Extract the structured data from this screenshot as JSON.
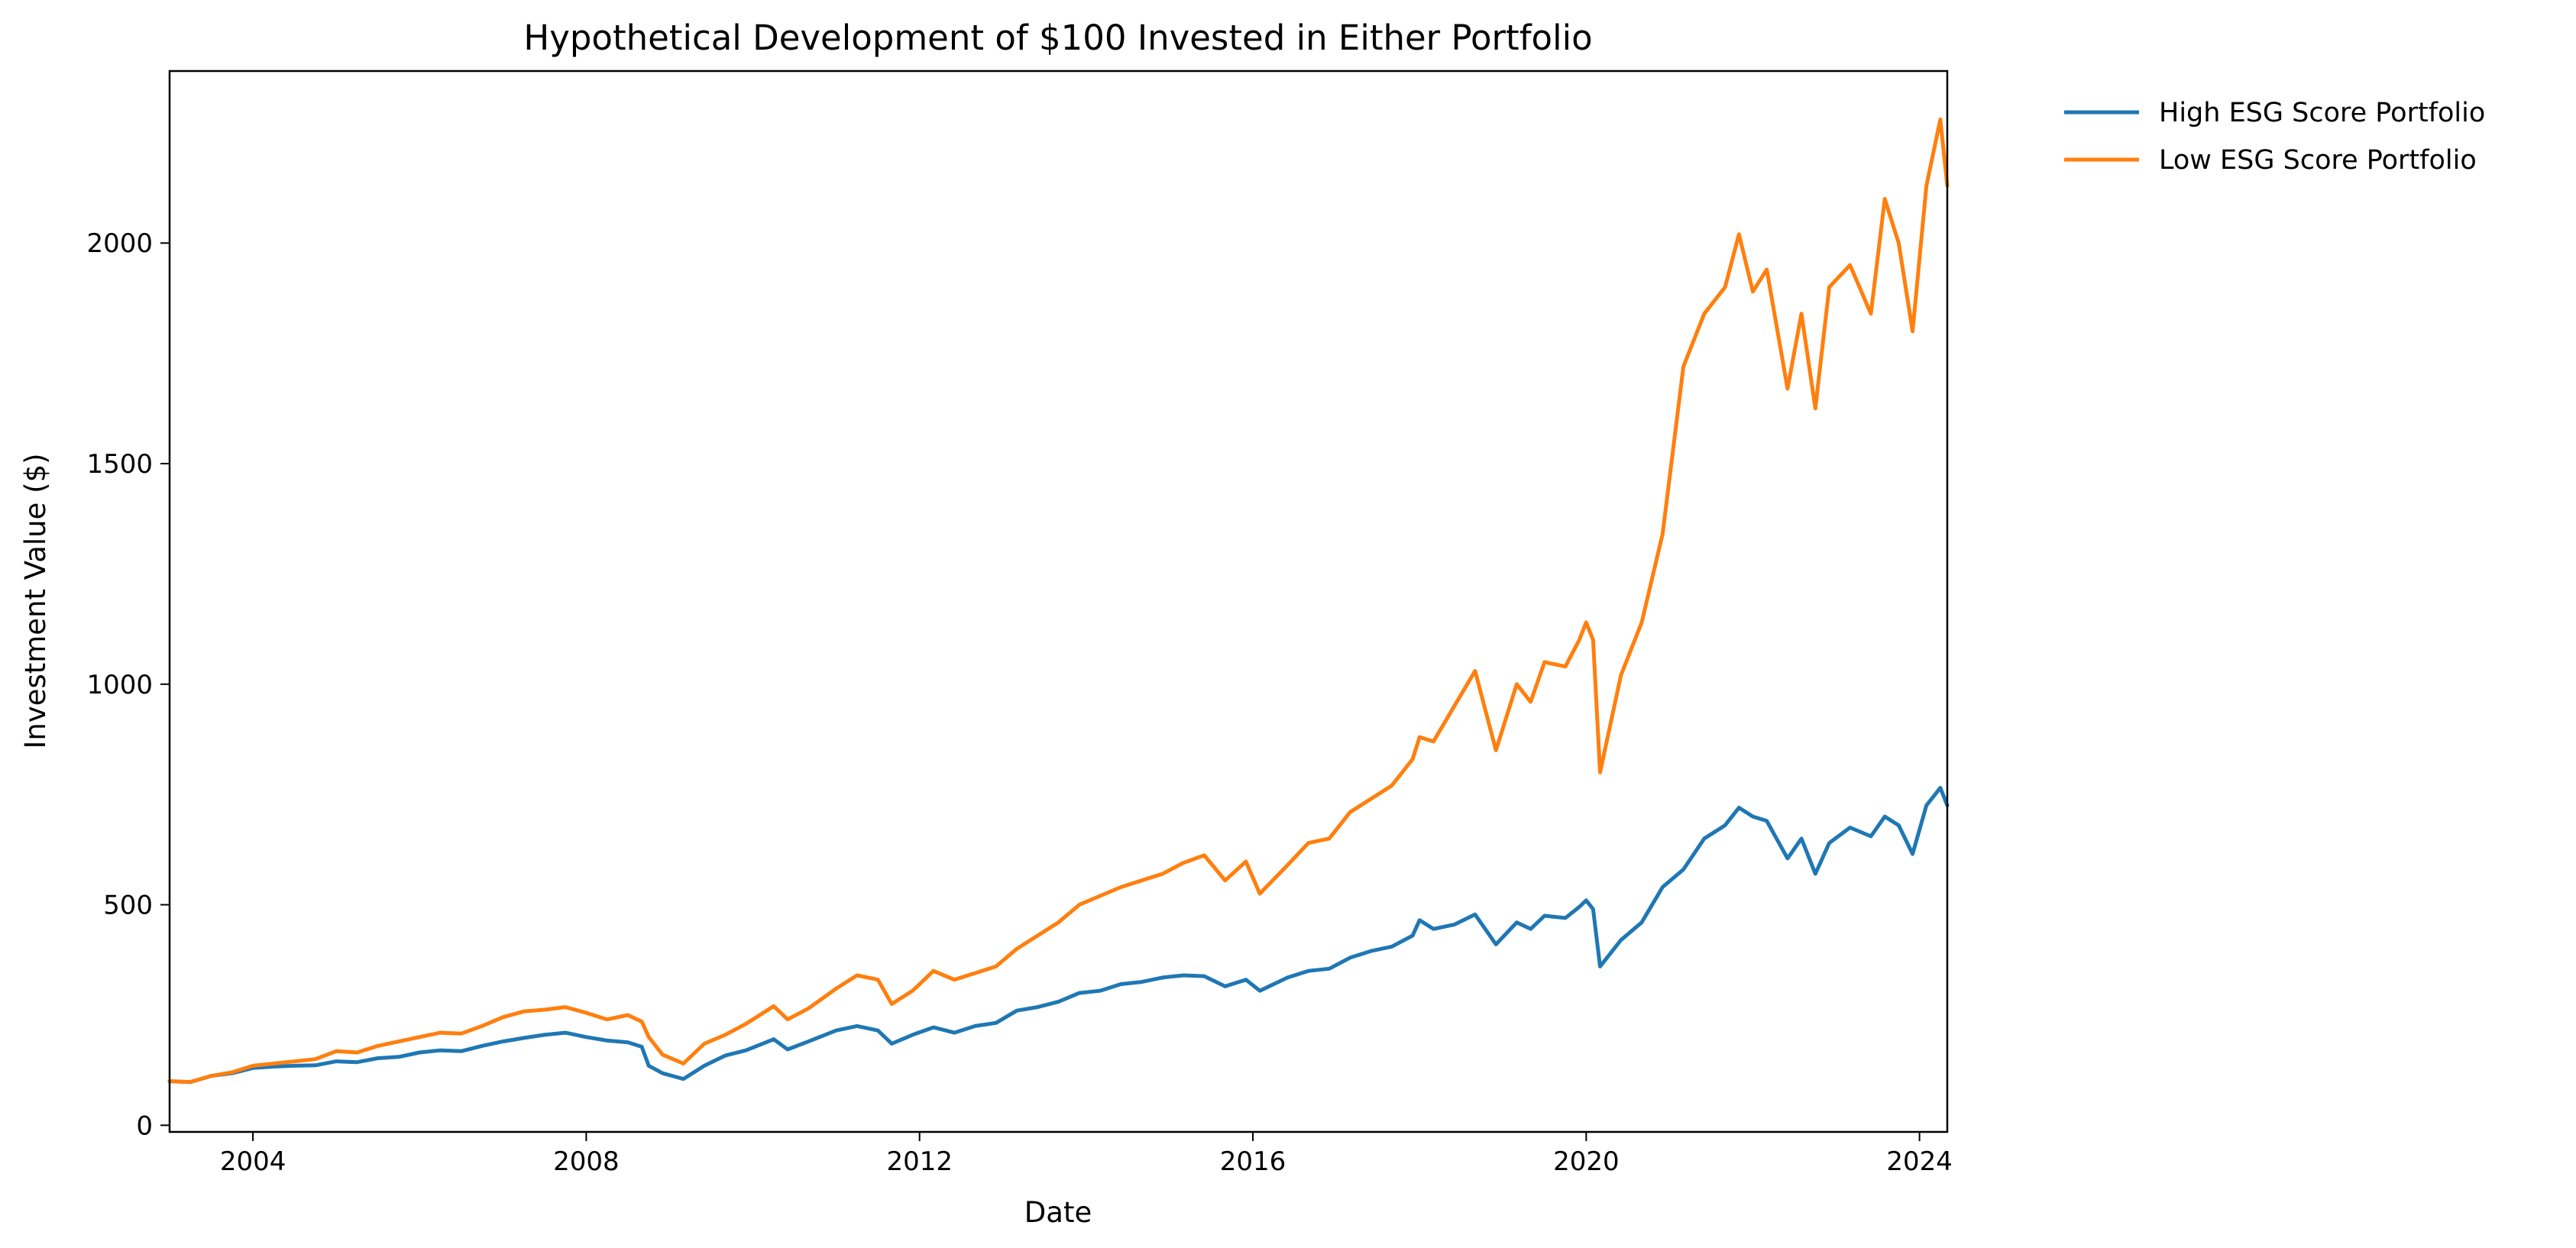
{
  "chart_data": {
    "type": "line",
    "title": "Hypothetical Development of $100 Invested in Either Portfolio",
    "xlabel": "Date",
    "ylabel": "Investment Value ($)",
    "x_type": "date",
    "xlim": [
      "2003-01",
      "2024-05"
    ],
    "ylim": [
      -15,
      2390
    ],
    "xticks": [
      "2004",
      "2008",
      "2012",
      "2016",
      "2020",
      "2024"
    ],
    "yticks": [
      0,
      500,
      1000,
      1500,
      2000
    ],
    "grid": false,
    "legend_position": "outside-top-right",
    "series": [
      {
        "name": "High ESG Score Portfolio",
        "color": "#1f77b4",
        "points": [
          [
            "2003-01",
            100
          ],
          [
            "2003-04",
            98
          ],
          [
            "2003-07",
            112
          ],
          [
            "2003-10",
            118
          ],
          [
            "2004-01",
            130
          ],
          [
            "2004-04",
            133
          ],
          [
            "2004-07",
            135
          ],
          [
            "2004-10",
            136
          ],
          [
            "2005-01",
            145
          ],
          [
            "2005-04",
            143
          ],
          [
            "2005-07",
            152
          ],
          [
            "2005-10",
            155
          ],
          [
            "2006-01",
            165
          ],
          [
            "2006-04",
            170
          ],
          [
            "2006-07",
            168
          ],
          [
            "2006-10",
            180
          ],
          [
            "2007-01",
            190
          ],
          [
            "2007-04",
            198
          ],
          [
            "2007-07",
            205
          ],
          [
            "2007-10",
            210
          ],
          [
            "2008-01",
            200
          ],
          [
            "2008-04",
            192
          ],
          [
            "2008-07",
            188
          ],
          [
            "2008-09",
            178
          ],
          [
            "2008-10",
            135
          ],
          [
            "2008-12",
            118
          ],
          [
            "2009-03",
            105
          ],
          [
            "2009-06",
            135
          ],
          [
            "2009-09",
            158
          ],
          [
            "2009-12",
            170
          ],
          [
            "2010-04",
            195
          ],
          [
            "2010-06",
            172
          ],
          [
            "2010-09",
            190
          ],
          [
            "2011-01",
            215
          ],
          [
            "2011-04",
            225
          ],
          [
            "2011-07",
            215
          ],
          [
            "2011-09",
            185
          ],
          [
            "2011-12",
            205
          ],
          [
            "2012-03",
            222
          ],
          [
            "2012-06",
            210
          ],
          [
            "2012-09",
            225
          ],
          [
            "2012-12",
            232
          ],
          [
            "2013-03",
            260
          ],
          [
            "2013-06",
            268
          ],
          [
            "2013-09",
            280
          ],
          [
            "2013-12",
            300
          ],
          [
            "2014-03",
            305
          ],
          [
            "2014-06",
            320
          ],
          [
            "2014-09",
            325
          ],
          [
            "2014-12",
            335
          ],
          [
            "2015-03",
            340
          ],
          [
            "2015-06",
            338
          ],
          [
            "2015-09",
            315
          ],
          [
            "2015-12",
            330
          ],
          [
            "2016-02",
            305
          ],
          [
            "2016-06",
            335
          ],
          [
            "2016-09",
            350
          ],
          [
            "2016-12",
            355
          ],
          [
            "2017-03",
            380
          ],
          [
            "2017-06",
            395
          ],
          [
            "2017-09",
            405
          ],
          [
            "2017-12",
            430
          ],
          [
            "2018-01",
            465
          ],
          [
            "2018-03",
            445
          ],
          [
            "2018-06",
            455
          ],
          [
            "2018-09",
            478
          ],
          [
            "2018-12",
            410
          ],
          [
            "2019-03",
            460
          ],
          [
            "2019-05",
            445
          ],
          [
            "2019-07",
            475
          ],
          [
            "2019-10",
            470
          ],
          [
            "2019-12",
            495
          ],
          [
            "2020-01",
            510
          ],
          [
            "2020-02",
            490
          ],
          [
            "2020-03",
            360
          ],
          [
            "2020-06",
            420
          ],
          [
            "2020-09",
            460
          ],
          [
            "2020-12",
            540
          ],
          [
            "2021-03",
            580
          ],
          [
            "2021-06",
            650
          ],
          [
            "2021-09",
            680
          ],
          [
            "2021-11",
            720
          ],
          [
            "2022-01",
            700
          ],
          [
            "2022-03",
            690
          ],
          [
            "2022-06",
            605
          ],
          [
            "2022-08",
            650
          ],
          [
            "2022-10",
            570
          ],
          [
            "2022-12",
            640
          ],
          [
            "2023-03",
            675
          ],
          [
            "2023-06",
            655
          ],
          [
            "2023-08",
            700
          ],
          [
            "2023-10",
            680
          ],
          [
            "2023-12",
            615
          ],
          [
            "2024-02",
            725
          ],
          [
            "2024-04",
            765
          ],
          [
            "2024-05",
            725
          ]
        ]
      },
      {
        "name": "Low ESG Score Portfolio",
        "color": "#ff7f0e",
        "points": [
          [
            "2003-01",
            100
          ],
          [
            "2003-04",
            98
          ],
          [
            "2003-07",
            112
          ],
          [
            "2003-10",
            120
          ],
          [
            "2004-01",
            135
          ],
          [
            "2004-04",
            140
          ],
          [
            "2004-07",
            145
          ],
          [
            "2004-10",
            150
          ],
          [
            "2005-01",
            168
          ],
          [
            "2005-04",
            165
          ],
          [
            "2005-07",
            180
          ],
          [
            "2005-10",
            190
          ],
          [
            "2006-01",
            200
          ],
          [
            "2006-04",
            210
          ],
          [
            "2006-07",
            208
          ],
          [
            "2006-10",
            225
          ],
          [
            "2007-01",
            245
          ],
          [
            "2007-04",
            258
          ],
          [
            "2007-07",
            262
          ],
          [
            "2007-10",
            268
          ],
          [
            "2008-01",
            255
          ],
          [
            "2008-04",
            240
          ],
          [
            "2008-07",
            250
          ],
          [
            "2008-09",
            235
          ],
          [
            "2008-10",
            200
          ],
          [
            "2008-12",
            160
          ],
          [
            "2009-03",
            140
          ],
          [
            "2009-06",
            185
          ],
          [
            "2009-09",
            205
          ],
          [
            "2009-12",
            230
          ],
          [
            "2010-04",
            270
          ],
          [
            "2010-06",
            240
          ],
          [
            "2010-09",
            265
          ],
          [
            "2011-01",
            310
          ],
          [
            "2011-04",
            340
          ],
          [
            "2011-07",
            330
          ],
          [
            "2011-09",
            275
          ],
          [
            "2011-12",
            305
          ],
          [
            "2012-03",
            350
          ],
          [
            "2012-06",
            330
          ],
          [
            "2012-09",
            345
          ],
          [
            "2012-12",
            360
          ],
          [
            "2013-03",
            400
          ],
          [
            "2013-06",
            430
          ],
          [
            "2013-09",
            460
          ],
          [
            "2013-12",
            500
          ],
          [
            "2014-03",
            520
          ],
          [
            "2014-06",
            540
          ],
          [
            "2014-09",
            555
          ],
          [
            "2014-12",
            570
          ],
          [
            "2015-03",
            595
          ],
          [
            "2015-06",
            612
          ],
          [
            "2015-09",
            555
          ],
          [
            "2015-12",
            598
          ],
          [
            "2016-02",
            525
          ],
          [
            "2016-06",
            590
          ],
          [
            "2016-09",
            640
          ],
          [
            "2016-12",
            650
          ],
          [
            "2017-03",
            710
          ],
          [
            "2017-06",
            740
          ],
          [
            "2017-09",
            770
          ],
          [
            "2017-12",
            830
          ],
          [
            "2018-01",
            880
          ],
          [
            "2018-03",
            870
          ],
          [
            "2018-06",
            950
          ],
          [
            "2018-09",
            1030
          ],
          [
            "2018-12",
            850
          ],
          [
            "2019-03",
            1000
          ],
          [
            "2019-05",
            960
          ],
          [
            "2019-07",
            1050
          ],
          [
            "2019-10",
            1040
          ],
          [
            "2019-12",
            1100
          ],
          [
            "2020-01",
            1140
          ],
          [
            "2020-02",
            1100
          ],
          [
            "2020-03",
            800
          ],
          [
            "2020-06",
            1020
          ],
          [
            "2020-09",
            1140
          ],
          [
            "2020-12",
            1340
          ],
          [
            "2021-03",
            1720
          ],
          [
            "2021-06",
            1840
          ],
          [
            "2021-09",
            1900
          ],
          [
            "2021-11",
            2020
          ],
          [
            "2022-01",
            1890
          ],
          [
            "2022-03",
            1940
          ],
          [
            "2022-06",
            1670
          ],
          [
            "2022-08",
            1840
          ],
          [
            "2022-10",
            1625
          ],
          [
            "2022-12",
            1900
          ],
          [
            "2023-03",
            1950
          ],
          [
            "2023-06",
            1840
          ],
          [
            "2023-08",
            2100
          ],
          [
            "2023-10",
            2000
          ],
          [
            "2023-12",
            1800
          ],
          [
            "2024-02",
            2130
          ],
          [
            "2024-04",
            2280
          ],
          [
            "2024-05",
            2130
          ]
        ]
      }
    ]
  }
}
